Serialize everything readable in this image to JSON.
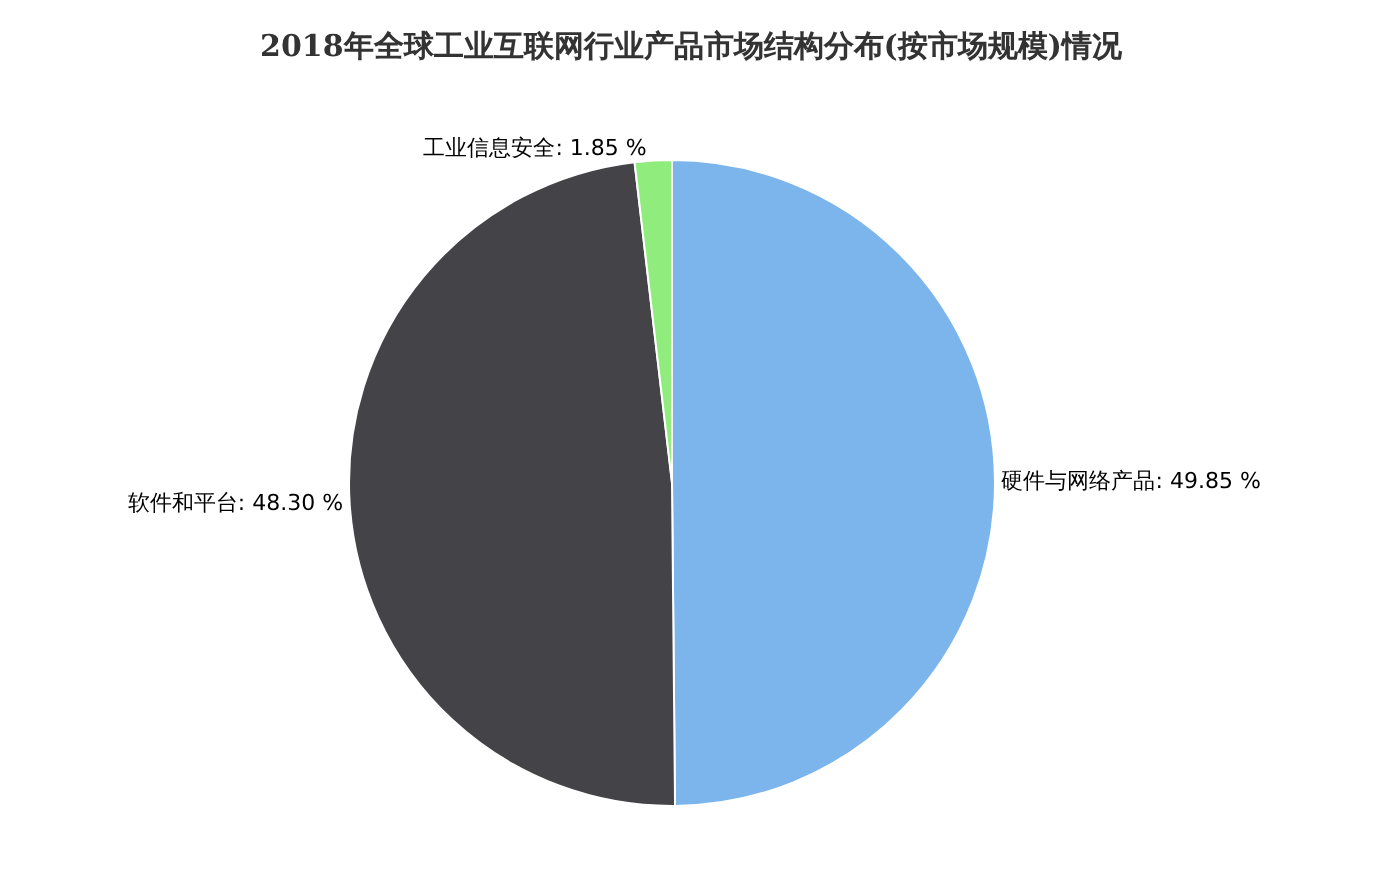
{
  "chart_data": {
    "type": "pie",
    "title": "2018年全球工业互联网行业产品市场结构分布(按市场规模)情况",
    "categories": [
      "硬件与网络产品",
      "软件和平台",
      "工业信息安全"
    ],
    "values": [
      49.85,
      48.3,
      1.85
    ],
    "value_labels": [
      "49.85 %",
      "48.30 %",
      "1.85 %"
    ],
    "colors": [
      "#7cb5ec",
      "#434348",
      "#90ed7d"
    ],
    "legend": false
  }
}
